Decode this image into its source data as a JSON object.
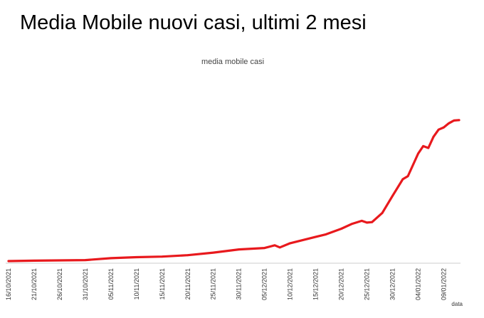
{
  "page": {
    "title": "Media Mobile nuovi casi, ultimi 2 mesi"
  },
  "chart_data": {
    "type": "line",
    "title": "media mobile casi",
    "xlabel": "data",
    "ylabel": "",
    "grid": false,
    "legend": "none",
    "line_color": "#e8191d",
    "x_tick_labels": [
      "16/10/2021",
      "21/10/2021",
      "26/10/2021",
      "31/10/2021",
      "05/11/2021",
      "10/11/2021",
      "15/11/2021",
      "20/11/2021",
      "25/11/2021",
      "30/11/2021",
      "05/12/2021",
      "10/12/2021",
      "15/12/2021",
      "20/12/2021",
      "25/12/2021",
      "30/12/2021",
      "04/01/2022",
      "09/01/2022"
    ],
    "ylim": [
      0,
      100
    ],
    "series": [
      {
        "x": [
          "16/10/2021",
          "21/10/2021",
          "26/10/2021",
          "31/10/2021",
          "05/11/2021",
          "10/11/2021",
          "15/11/2021",
          "20/11/2021",
          "25/11/2021",
          "30/11/2021",
          "05/12/2021",
          "07/12/2021",
          "08/12/2021",
          "10/12/2021",
          "15/12/2021",
          "17/12/2021",
          "20/12/2021",
          "22/12/2021",
          "24/12/2021",
          "25/12/2021",
          "26/12/2021",
          "28/12/2021",
          "30/12/2021",
          "01/01/2022",
          "02/01/2022",
          "04/01/2022",
          "05/01/2022",
          "06/01/2022",
          "07/01/2022",
          "08/01/2022",
          "09/01/2022",
          "10/01/2022",
          "11/01/2022",
          "12/01/2022"
        ],
        "values": [
          0.5,
          0.8,
          1.0,
          1.2,
          2.5,
          3.2,
          3.6,
          4.6,
          6.4,
          8.6,
          9.6,
          11.5,
          10.0,
          12.9,
          17.4,
          19.1,
          23.0,
          26.3,
          28.5,
          27.3,
          27.6,
          34.0,
          45.9,
          57.5,
          59.6,
          75.3,
          80.5,
          79.2,
          87.0,
          92.0,
          93.5,
          96.4,
          98.3,
          98.6
        ]
      }
    ]
  }
}
